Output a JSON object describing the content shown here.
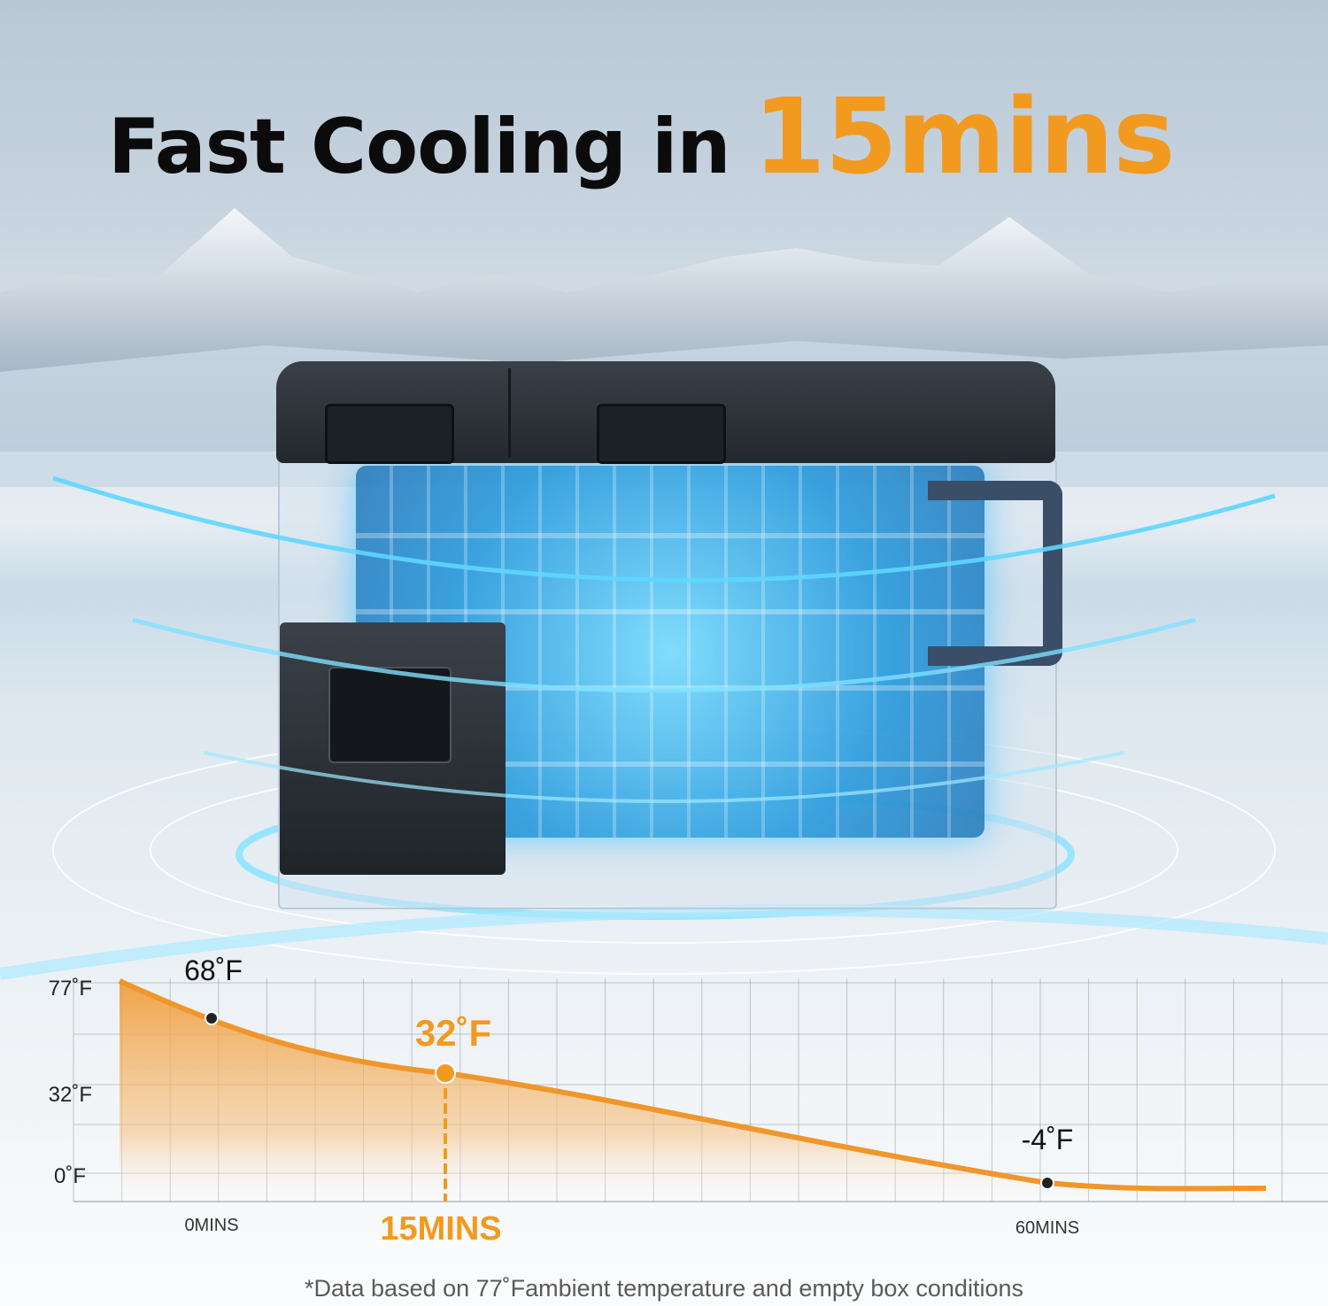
{
  "headline": {
    "text": "Fast Cooling in",
    "highlight": "15mins",
    "highlight_color": "#f29a1f"
  },
  "product": {
    "icons": [
      "mountain-landscape",
      "portable-fridge-cooler",
      "cold-rings"
    ]
  },
  "chart_data": {
    "type": "area",
    "title": "",
    "xlabel": "",
    "ylabel": "",
    "y_ticks": [
      "77˚F",
      "32˚F",
      "0˚F"
    ],
    "x_ticks": [
      "0MINS",
      "15MINS",
      "60MINS"
    ],
    "points": [
      {
        "minutes": 0,
        "temp_f": 68,
        "label": "68˚F"
      },
      {
        "minutes": 15,
        "temp_f": 32,
        "label": "32˚F",
        "highlight": true
      },
      {
        "minutes": 60,
        "temp_f": -4,
        "label": "-4˚F"
      }
    ],
    "grid": true,
    "line_color": "#f0962a",
    "highlight_color": "#f29a1f"
  },
  "footnote": "*Data based on 77˚Fambient temperature and empty box conditions"
}
